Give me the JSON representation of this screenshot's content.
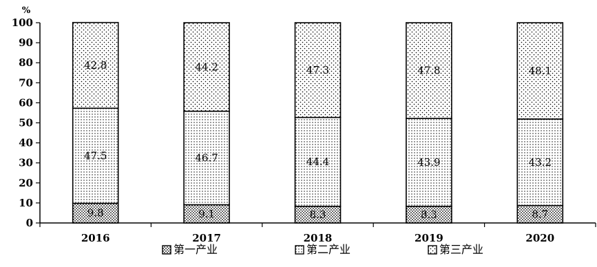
{
  "chart_data": {
    "type": "bar",
    "stacked": true,
    "unit": "%",
    "categories": [
      "2016",
      "2017",
      "2018",
      "2019",
      "2020"
    ],
    "series": [
      {
        "name": "第一产业",
        "values": [
          9.8,
          9.1,
          8.3,
          8.3,
          8.7
        ],
        "fill": "dots-dense"
      },
      {
        "name": "第二产业",
        "values": [
          47.5,
          46.7,
          44.4,
          43.9,
          43.2
        ],
        "fill": "dots-fine"
      },
      {
        "name": "第三产业",
        "values": [
          42.8,
          44.2,
          47.3,
          47.8,
          48.1
        ],
        "fill": "dots-sparse"
      }
    ],
    "ylim": [
      0,
      100
    ],
    "yticks": [
      0,
      10,
      20,
      30,
      40,
      50,
      60,
      70,
      80,
      90,
      100
    ],
    "grid": false,
    "legend_position": "bottom",
    "colors": {
      "ink": "#000000",
      "background": "#ffffff"
    }
  }
}
